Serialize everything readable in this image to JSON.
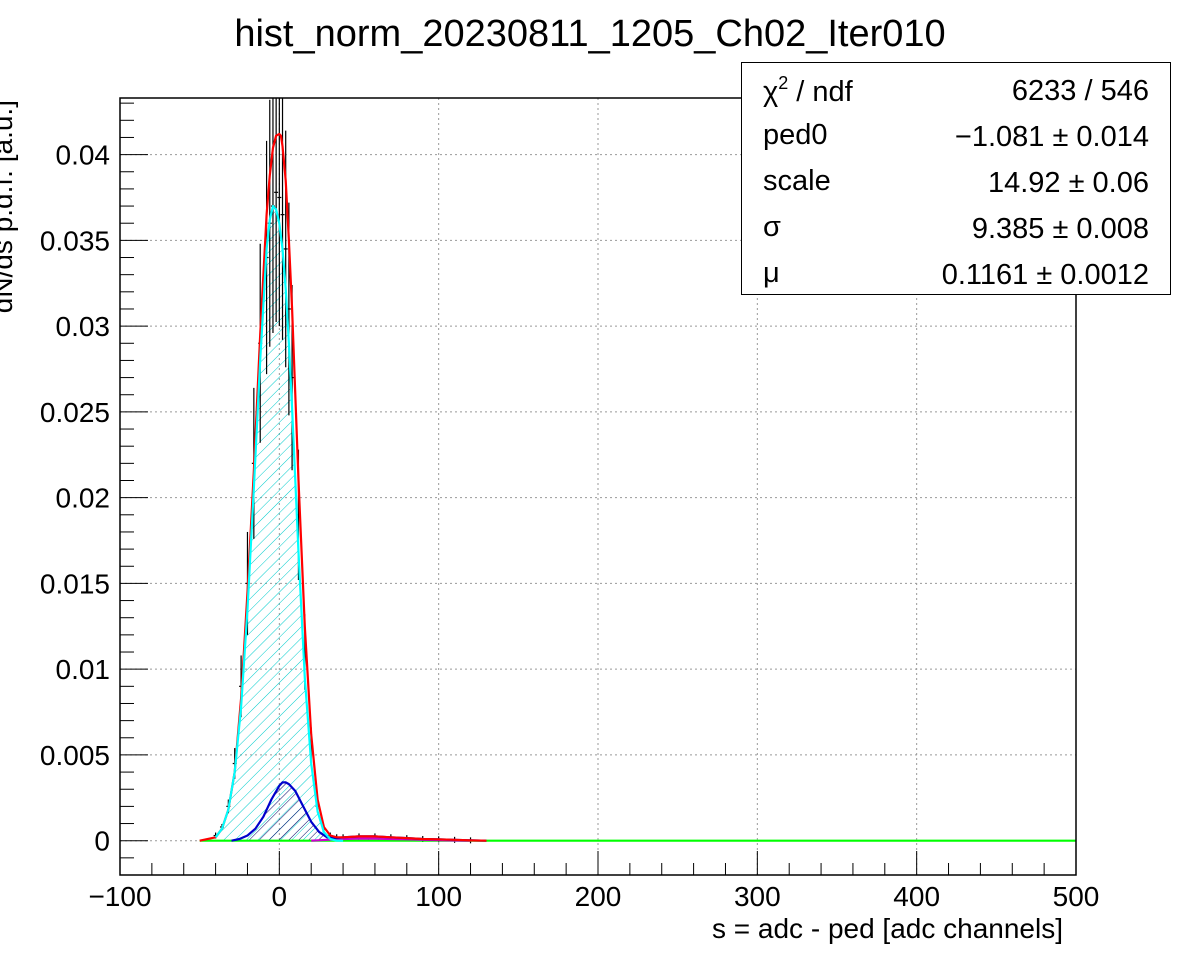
{
  "chart_data": {
    "type": "line",
    "title": "hist_norm_20230811_1205_Ch02_Iter010",
    "xlabel": "s = adc - ped [adc channels]",
    "ylabel": "dN/ds p.d.f. [a.u.]",
    "xlim": [
      -100,
      500
    ],
    "ylim": [
      -0.002,
      0.0433
    ],
    "grid": true,
    "x_ticks": [
      -100,
      0,
      100,
      200,
      300,
      400,
      500
    ],
    "x_tick_labels": [
      "−100",
      "0",
      "100",
      "200",
      "300",
      "400",
      "500"
    ],
    "y_ticks": [
      0,
      0.005,
      0.01,
      0.015,
      0.02,
      0.025,
      0.03,
      0.035,
      0.04
    ],
    "y_tick_labels": [
      "0",
      "0.005",
      "0.01",
      "0.015",
      "0.02",
      "0.025",
      "0.03",
      "0.035",
      "0.04"
    ],
    "series": [
      {
        "color": "#000000",
        "style": "data",
        "x": [
          -40,
          -36,
          -32,
          -28,
          -24,
          -20,
          -16,
          -12,
          -8,
          -6,
          -4,
          -2,
          0,
          2,
          4,
          6,
          8,
          12,
          16,
          20,
          24,
          28,
          32,
          36,
          40,
          50,
          60,
          70,
          80,
          90,
          100,
          110,
          120
        ],
        "y": [
          0.0003,
          0.0008,
          0.002,
          0.0045,
          0.009,
          0.015,
          0.022,
          0.029,
          0.034,
          0.036,
          0.037,
          0.0378,
          0.0375,
          0.0365,
          0.0345,
          0.031,
          0.027,
          0.019,
          0.011,
          0.0055,
          0.002,
          0.0007,
          0.0003,
          0.0002,
          0.0002,
          0.00025,
          0.00025,
          0.0002,
          0.00015,
          0.0001,
          8e-05,
          5e-05,
          2e-05
        ]
      },
      {
        "color": "#ff0000",
        "style": "line",
        "x": [
          -50,
          -40,
          -36,
          -32,
          -28,
          -24,
          -20,
          -16,
          -12,
          -8,
          -6,
          -4,
          -2,
          0,
          1,
          2,
          4,
          6,
          8,
          12,
          16,
          20,
          24,
          28,
          32,
          36,
          40,
          50,
          60,
          70,
          80,
          90,
          100,
          110,
          120,
          130
        ],
        "y": [
          0,
          0.0002,
          0.0007,
          0.0018,
          0.004,
          0.0083,
          0.0145,
          0.0215,
          0.0295,
          0.0365,
          0.0388,
          0.0404,
          0.0411,
          0.0412,
          0.0411,
          0.0405,
          0.0385,
          0.035,
          0.031,
          0.021,
          0.0125,
          0.0062,
          0.0024,
          0.0008,
          0.0003,
          0.0002,
          0.0002,
          0.00025,
          0.00025,
          0.0002,
          0.00015,
          0.0001,
          8e-05,
          5e-05,
          2e-05,
          0
        ]
      },
      {
        "color": "#00ffff",
        "style": "hatched",
        "x": [
          -40,
          -36,
          -32,
          -28,
          -24,
          -20,
          -16,
          -12,
          -8,
          -6,
          -4,
          -2,
          0,
          2,
          4,
          6,
          8,
          12,
          16,
          20,
          24,
          28,
          32,
          36,
          40
        ],
        "y": [
          0.0002,
          0.0007,
          0.0018,
          0.004,
          0.0078,
          0.0135,
          0.0205,
          0.028,
          0.0345,
          0.0362,
          0.037,
          0.0368,
          0.036,
          0.0345,
          0.0322,
          0.029,
          0.0252,
          0.0168,
          0.0095,
          0.0045,
          0.0017,
          0.0005,
          0.0001,
          0,
          0
        ]
      },
      {
        "color": "#0000cc",
        "style": "hatched",
        "x": [
          -30,
          -25,
          -20,
          -15,
          -10,
          -5,
          0,
          2,
          4,
          6,
          10,
          15,
          20,
          25,
          30,
          35,
          40,
          50,
          60,
          70,
          80,
          90,
          100,
          110,
          120,
          130
        ],
        "y": [
          0,
          0.0001,
          0.0003,
          0.0007,
          0.0014,
          0.0024,
          0.0032,
          0.0034,
          0.0034,
          0.0033,
          0.0029,
          0.002,
          0.0011,
          0.0005,
          0.0002,
          0.00015,
          0.0002,
          0.00025,
          0.00025,
          0.0002,
          0.00015,
          0.0001,
          8e-05,
          5e-05,
          2e-05,
          0
        ]
      },
      {
        "color": "#cc00cc",
        "style": "line",
        "x": [
          20,
          30,
          40,
          50,
          60,
          70,
          80,
          90,
          100,
          110,
          120
        ],
        "y": [
          0,
          5e-05,
          0.0001,
          0.00013,
          0.00012,
          0.0001,
          8e-05,
          5e-05,
          3e-05,
          1e-05,
          0
        ]
      },
      {
        "color": "#00ff00",
        "style": "line",
        "x": [
          -50,
          500
        ],
        "y": [
          0,
          0
        ]
      }
    ]
  },
  "stats_box": {
    "rows": [
      {
        "name": "χ",
        "sup": "2",
        "name_rest": " / ndf",
        "value": "6233 / 546"
      },
      {
        "name": "ped0",
        "sup": "",
        "name_rest": "",
        "value": "−1.081 ± 0.014"
      },
      {
        "name": "scale",
        "sup": "",
        "name_rest": "",
        "value": "14.92 ± 0.06"
      },
      {
        "name": "σ",
        "sup": "",
        "name_rest": "",
        "value": "9.385 ± 0.008"
      },
      {
        "name": "μ",
        "sup": "",
        "name_rest": "",
        "value": "0.1161 ± 0.0012"
      }
    ]
  }
}
